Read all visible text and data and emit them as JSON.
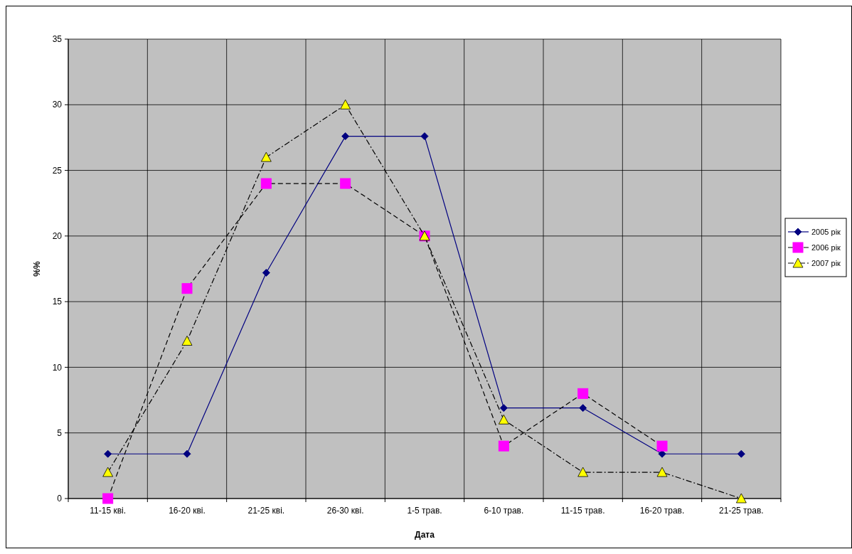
{
  "chart_data": {
    "type": "line",
    "xlabel": "Дата",
    "ylabel": "%%",
    "categories": [
      "11-15 кві.",
      "16-20 кві.",
      "21-25 кві.",
      "26-30 кві.",
      "1-5 трав.",
      "6-10 трав.",
      "11-15 трав.",
      "16-20 трав.",
      "21-25 трав."
    ],
    "series": [
      {
        "name": "2005 рік",
        "color": "#000080",
        "marker": "diamond",
        "line_style": "solid",
        "values": [
          3.4,
          3.4,
          17.2,
          27.6,
          27.6,
          6.9,
          6.9,
          3.4,
          3.4
        ]
      },
      {
        "name": "2006 рік",
        "color": "#000000",
        "colors": [
          "#ff00ff",
          "#ff00ff",
          "#ff00ff",
          "#ff00ff",
          "#ff00ff",
          "#ff00ff",
          "#ff00ff",
          "#ff00ff",
          null
        ],
        "marker": "square",
        "line_style": "dashed",
        "values": [
          0,
          16,
          24,
          24,
          20,
          4,
          8,
          4,
          null
        ]
      },
      {
        "name": "2007 рік",
        "color": "#000000",
        "colors": [
          "#ffff00",
          "#ffff00",
          "#ffff00",
          "#ffff00",
          "#ffff00",
          "#ffff00",
          "#ffff00",
          "#ffff00",
          "#ffff00"
        ],
        "marker": "triangle",
        "line_style": "dotted",
        "values": [
          2,
          12,
          26,
          30,
          20,
          6,
          2,
          2,
          0
        ]
      }
    ],
    "ylim": [
      0,
      35
    ],
    "yticks": [
      0,
      5,
      10,
      15,
      20,
      25,
      30,
      35
    ],
    "grid": true,
    "legend": "right"
  }
}
